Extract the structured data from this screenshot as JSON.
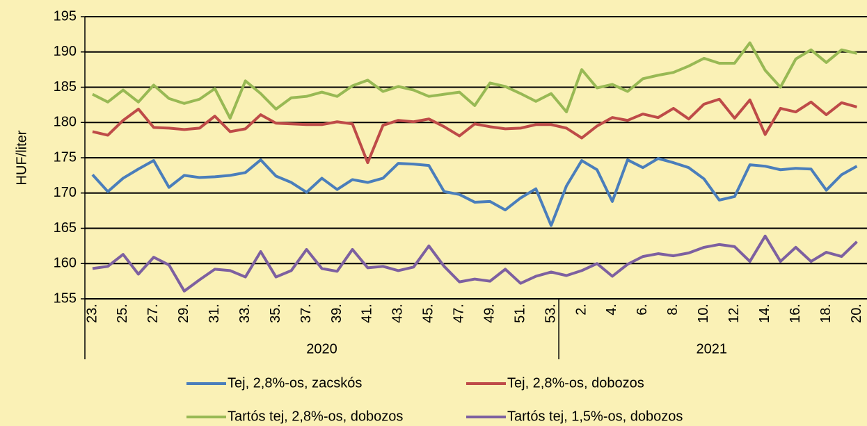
{
  "chart_data": {
    "type": "line",
    "y_label": "HUF/liter",
    "groups": [
      {
        "name": "2020",
        "categories": [
          "23.",
          null,
          "25.",
          null,
          "27.",
          null,
          "29.",
          null,
          "31.",
          null,
          "33.",
          null,
          "35.",
          null,
          "37.",
          null,
          "39.",
          null,
          "41.",
          null,
          "43.",
          null,
          "45.",
          null,
          "47.",
          null,
          "49.",
          null,
          "51.",
          null,
          "53."
        ]
      },
      {
        "name": "2021",
        "categories": [
          null,
          "2.",
          null,
          "4.",
          null,
          "6.",
          null,
          "8.",
          null,
          "10.",
          null,
          "12.",
          null,
          "14.",
          null,
          "16.",
          null,
          "18.",
          null,
          "20."
        ]
      }
    ],
    "series": [
      {
        "name": "Tej, 2,8%-os, zacskós",
        "color": "#4a7ebb",
        "values": [
          172.6,
          170.2,
          172.1,
          173.4,
          174.6,
          170.8,
          172.5,
          172.2,
          172.3,
          172.5,
          172.9,
          174.7,
          172.4,
          171.5,
          170.1,
          172.1,
          170.5,
          171.9,
          171.5,
          172.1,
          174.2,
          174.1,
          173.9,
          170.2,
          169.8,
          168.7,
          168.8,
          167.6,
          169.3,
          170.6,
          165.4,
          171.0,
          174.6,
          173.3,
          168.8,
          174.7,
          173.6,
          174.9,
          174.3,
          173.6,
          172.0,
          169.0,
          169.5,
          174.0,
          173.8,
          173.3,
          173.5,
          173.4,
          170.4,
          172.6,
          173.8
        ]
      },
      {
        "name": "Tej, 2,8%-os, dobozos",
        "color": "#be4b48",
        "values": [
          178.7,
          178.2,
          180.3,
          181.9,
          179.3,
          179.2,
          179.0,
          179.2,
          180.9,
          178.7,
          179.1,
          181.1,
          179.9,
          179.8,
          179.7,
          179.7,
          180.1,
          179.8,
          174.3,
          179.6,
          180.3,
          180.1,
          180.5,
          179.4,
          178.1,
          179.8,
          179.4,
          179.1,
          179.2,
          179.7,
          179.7,
          179.2,
          177.8,
          179.5,
          180.7,
          180.3,
          181.2,
          180.7,
          182.0,
          180.5,
          182.6,
          183.3,
          180.6,
          183.2,
          178.3,
          182.0,
          181.5,
          182.9,
          181.1,
          182.8,
          182.2
        ]
      },
      {
        "name": "Tartós tej, 2,8%-os, dobozos",
        "color": "#98b954",
        "values": [
          184.0,
          182.9,
          184.6,
          182.9,
          185.3,
          183.4,
          182.7,
          183.3,
          184.8,
          180.6,
          185.9,
          184.1,
          181.9,
          183.5,
          183.7,
          184.3,
          183.7,
          185.2,
          186.0,
          184.4,
          185.1,
          184.6,
          183.7,
          184.0,
          184.3,
          182.4,
          185.6,
          185.1,
          184.1,
          183.0,
          184.1,
          181.5,
          187.5,
          184.9,
          185.4,
          184.4,
          186.2,
          186.7,
          187.1,
          188.0,
          189.1,
          188.4,
          188.4,
          191.3,
          187.4,
          185.0,
          189.0,
          190.3,
          188.5,
          190.3,
          189.8
        ]
      },
      {
        "name": "Tartós tej, 1,5%-os, dobozos",
        "color": "#7d60a0",
        "values": [
          159.3,
          159.6,
          161.3,
          158.5,
          160.9,
          159.8,
          156.1,
          157.7,
          159.2,
          159.0,
          158.1,
          161.7,
          158.1,
          159.0,
          162.0,
          159.3,
          158.9,
          162.0,
          159.4,
          159.6,
          159.0,
          159.5,
          162.5,
          159.6,
          157.4,
          157.8,
          157.5,
          159.2,
          157.2,
          158.2,
          158.8,
          158.3,
          159.0,
          160.0,
          158.2,
          159.9,
          161.0,
          161.4,
          161.1,
          161.5,
          162.3,
          162.7,
          162.4,
          160.3,
          163.9,
          160.3,
          162.3,
          160.3,
          161.6,
          161.0,
          163.1
        ]
      }
    ],
    "ylim": [
      155,
      195
    ],
    "yticks": [
      155,
      160,
      165,
      170,
      175,
      180,
      185,
      190,
      195
    ],
    "grid": true
  }
}
